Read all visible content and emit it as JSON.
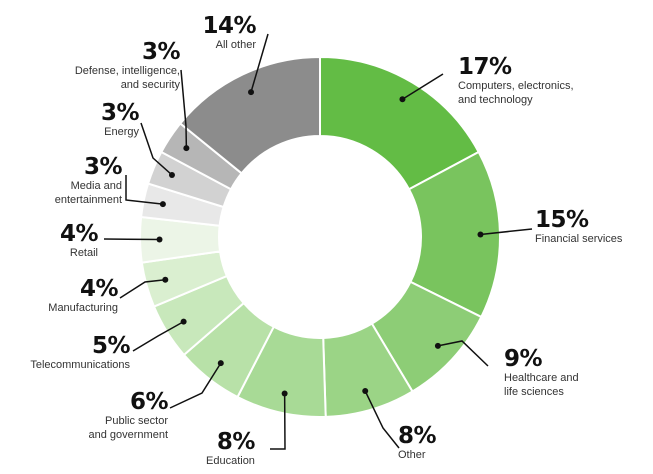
{
  "chart_data": {
    "type": "pie",
    "style": "donut",
    "legend": "none",
    "slices": [
      {
        "pct": "17%",
        "value": 17,
        "name": "Computers, electronics,\nand technology",
        "color": "#63bc45"
      },
      {
        "pct": "15%",
        "value": 15,
        "name": "Financial services",
        "color": "#79c45e"
      },
      {
        "pct": "9%",
        "value": 9,
        "name": "Healthcare and\nlife sciences",
        "color": "#8dcd76"
      },
      {
        "pct": "8%",
        "value": 8,
        "name": "Other",
        "color": "#9bd486"
      },
      {
        "pct": "8%",
        "value": 8,
        "name": "Education",
        "color": "#a8da96"
      },
      {
        "pct": "6%",
        "value": 6,
        "name": "Public sector\nand government",
        "color": "#b8e1a8"
      },
      {
        "pct": "5%",
        "value": 5,
        "name": "Telecommunications",
        "color": "#c8e8bb"
      },
      {
        "pct": "4%",
        "value": 4,
        "name": "Manufacturing",
        "color": "#daefd0"
      },
      {
        "pct": "4%",
        "value": 4,
        "name": "Retail",
        "color": "#ecf5e7"
      },
      {
        "pct": "3%",
        "value": 3,
        "name": "Media and\nentertainment",
        "color": "#e8e8e8"
      },
      {
        "pct": "3%",
        "value": 3,
        "name": "Energy",
        "color": "#d2d2d2"
      },
      {
        "pct": "3%",
        "value": 3,
        "name": "Defense, intelligence,\nand security",
        "color": "#b6b6b6"
      },
      {
        "pct": "14%",
        "value": 14,
        "name": "All other",
        "color": "#8c8c8c"
      }
    ]
  }
}
